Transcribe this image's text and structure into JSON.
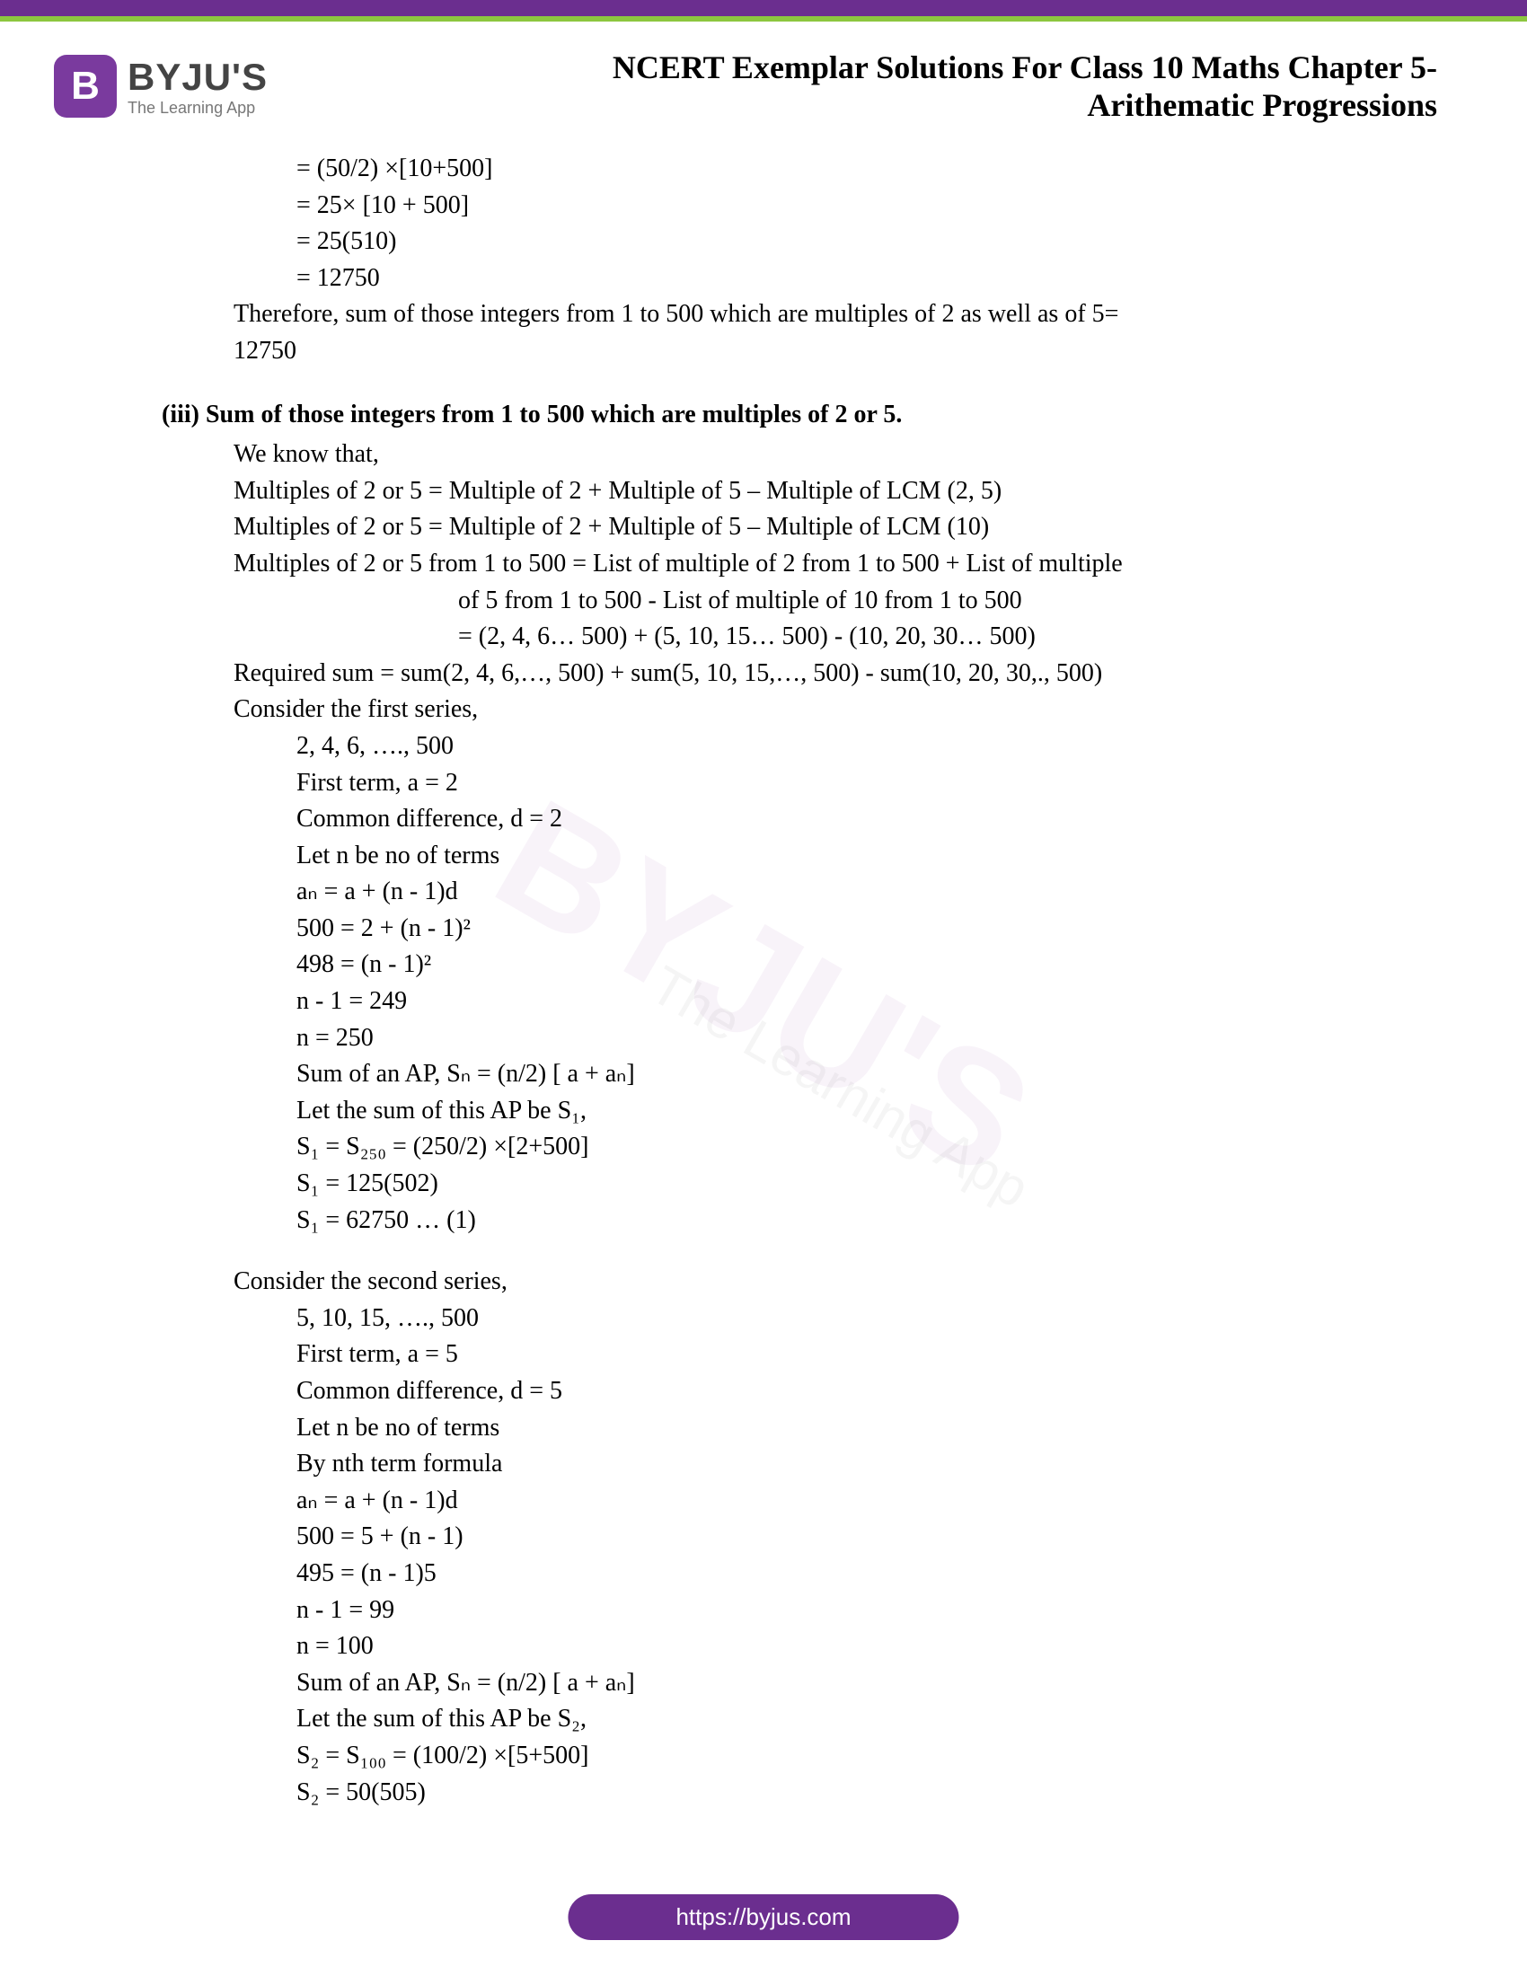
{
  "header": {
    "logo_letter": "B",
    "logo_main": "BYJU'S",
    "logo_sub": "The Learning App",
    "title_line1": "NCERT Exemplar Solutions For Class 10 Maths Chapter 5-",
    "title_line2": "Arithematic Progressions"
  },
  "watermark_main": "BYJU'S",
  "watermark_sub": "The Learning App",
  "body": {
    "calc1": "= (50/2) ×[10+500]",
    "calc2": "= 25× [10 + 500]",
    "calc3": "= 25(510)",
    "calc4": "= 12750",
    "conclusion1a": "Therefore, sum of those integers from 1 to 500 which are multiples of 2 as well as of 5=",
    "conclusion1b": "12750",
    "heading_iii": "(iii) Sum of those integers from 1 to 500 which are multiples of 2 or 5.",
    "line_weknow": "We know that,",
    "line_m1": "Multiples of 2 or 5 = Multiple of 2 + Multiple of 5 – Multiple of LCM (2, 5)",
    "line_m2": "Multiples of 2 or 5 = Multiple of 2 + Multiple of 5 – Multiple of LCM (10)",
    "line_m3": "Multiples of 2 or 5 from 1 to 500 = List of multiple of 2 from 1 to 500 + List of multiple",
    "line_m3b": "of 5 from 1 to 500 - List of multiple of 10 from 1 to 500",
    "line_m3c": "= (2, 4, 6… 500) + (5, 10, 15… 500) - (10, 20, 30… 500)",
    "line_req": "Required sum = sum(2, 4, 6,…, 500) + sum(5, 10, 15,…, 500) - sum(10, 20, 30,., 500)",
    "line_cons1": "Consider the first series,",
    "s1_1": "2, 4, 6, …., 500",
    "s1_2": "First term, a = 2",
    "s1_3": "Common difference, d = 2",
    "s1_4": "Let n be no of terms",
    "s1_5": "aₙ = a + (n - 1)d",
    "s1_6": "500 = 2 + (n - 1)²",
    "s1_7": "498 = (n - 1)²",
    "s1_8": "n - 1 = 249",
    "s1_9": "n = 250",
    "s1_10": "Sum of an AP, Sₙ = (n/2) [ a + aₙ]",
    "s1_11": "Let the sum of this AP be S₁,",
    "s1_12": "S₁ = S₂₅₀ = (250/2) ×[2+500]",
    "s1_13": "S₁ = 125(502)",
    "s1_14": "S₁ = 62750 … (1)",
    "line_cons2": "Consider the second series,",
    "s2_1": "5, 10, 15, …., 500",
    "s2_2": "First term, a = 5",
    "s2_3": "Common difference, d = 5",
    "s2_4": "Let n be no of terms",
    "s2_5": "By nth term formula",
    "s2_6": "aₙ = a + (n - 1)d",
    "s2_7": "500 = 5 + (n - 1)",
    "s2_8": "495 = (n - 1)5",
    "s2_9": "n - 1 = 99",
    "s2_10": "n = 100",
    "s2_11": "Sum of an AP, Sₙ = (n/2) [ a + aₙ]",
    "s2_12": "Let the sum of this AP be S₂,",
    "s2_13": "S₂ = S₁₀₀ = (100/2) ×[5+500]",
    "s2_14": "S₂ = 50(505)"
  },
  "footer": {
    "url": "https://byjus.com"
  },
  "colors": {
    "purple": "#6b2e8f",
    "green": "#8cc63f",
    "text": "#000000",
    "watermark": "rgba(160,100,180,0.08)"
  }
}
